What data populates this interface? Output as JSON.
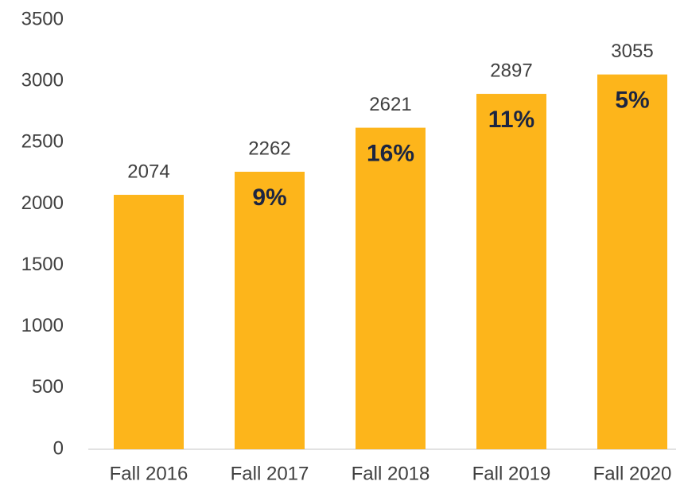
{
  "chart_data": {
    "type": "bar",
    "categories": [
      "Fall 2016",
      "Fall 2017",
      "Fall 2018",
      "Fall 2019",
      "Fall 2020"
    ],
    "values": [
      2074,
      2262,
      2621,
      2897,
      3055
    ],
    "growth_labels": [
      null,
      "9%",
      "16%",
      "11%",
      "5%"
    ],
    "color": "#fdb51b",
    "ylim": [
      0,
      3500
    ],
    "yticks": [
      0,
      500,
      1000,
      1500,
      2000,
      2500,
      3000,
      3500
    ],
    "grid": false
  }
}
